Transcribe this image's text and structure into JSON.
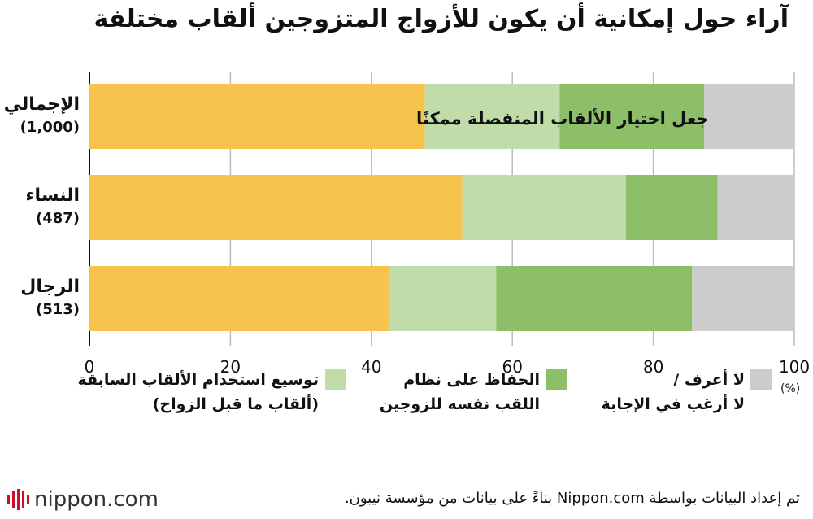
{
  "chart_data": {
    "type": "bar",
    "orientation": "horizontal",
    "stacked": true,
    "title": "آراء حول إمكانية أن يكون للأزواج المتزوجين ألقاب مختلفة",
    "categories": [
      {
        "name": "الإجمالي",
        "count": "(1,000)"
      },
      {
        "name": "النساء",
        "count": "(487)"
      },
      {
        "name": "الرجال",
        "count": "(513)"
      }
    ],
    "series": [
      {
        "name": "جعل اختيار الألقاب المنفصلة ممكنًا",
        "color": "#f7c34f",
        "values": [
          47.6,
          52.9,
          42.5
        ]
      },
      {
        "name": "توسيع استخدام الألقاب السابقة (ألقاب ما قبل الزواج)",
        "color": "#bfdca9",
        "values": [
          19.1,
          23.2,
          15.2
        ]
      },
      {
        "name": "الحفاظ على نظام اللقب نفسه للزوجين",
        "color": "#8cbf68",
        "values": [
          20.5,
          13.0,
          27.8
        ]
      },
      {
        "name": "لا أعرف / لا أرغب في الإجابة",
        "color": "#cccccc",
        "values": [
          12.8,
          10.9,
          14.5
        ]
      }
    ],
    "inline_label": "جعل اختيار الألقاب المنفصلة ممكنًا",
    "xlim": [
      0,
      100
    ],
    "xticks": [
      "0",
      "20",
      "40",
      "60",
      "80",
      "100"
    ],
    "unit": "(%)",
    "grid": true
  },
  "legend": [
    {
      "line1": "لا أعرف /",
      "line2": "لا أرغب في الإجابة",
      "color": "#cccccc"
    },
    {
      "line1": "الحفاظ على نظام",
      "line2": "اللقب نفسه للزوجين",
      "color": "#8cbf68"
    },
    {
      "line1": "توسيع استخدام الألقاب السابقة",
      "line2": "(ألقاب ما قبل الزواج)",
      "color": "#bfdca9"
    }
  ],
  "source": "تم إعداد البيانات بواسطة Nippon.com بناءً على بيانات من مؤسسة نيبون.",
  "logo": "nippon.com",
  "logo_icon": "nippon-logo-icon"
}
